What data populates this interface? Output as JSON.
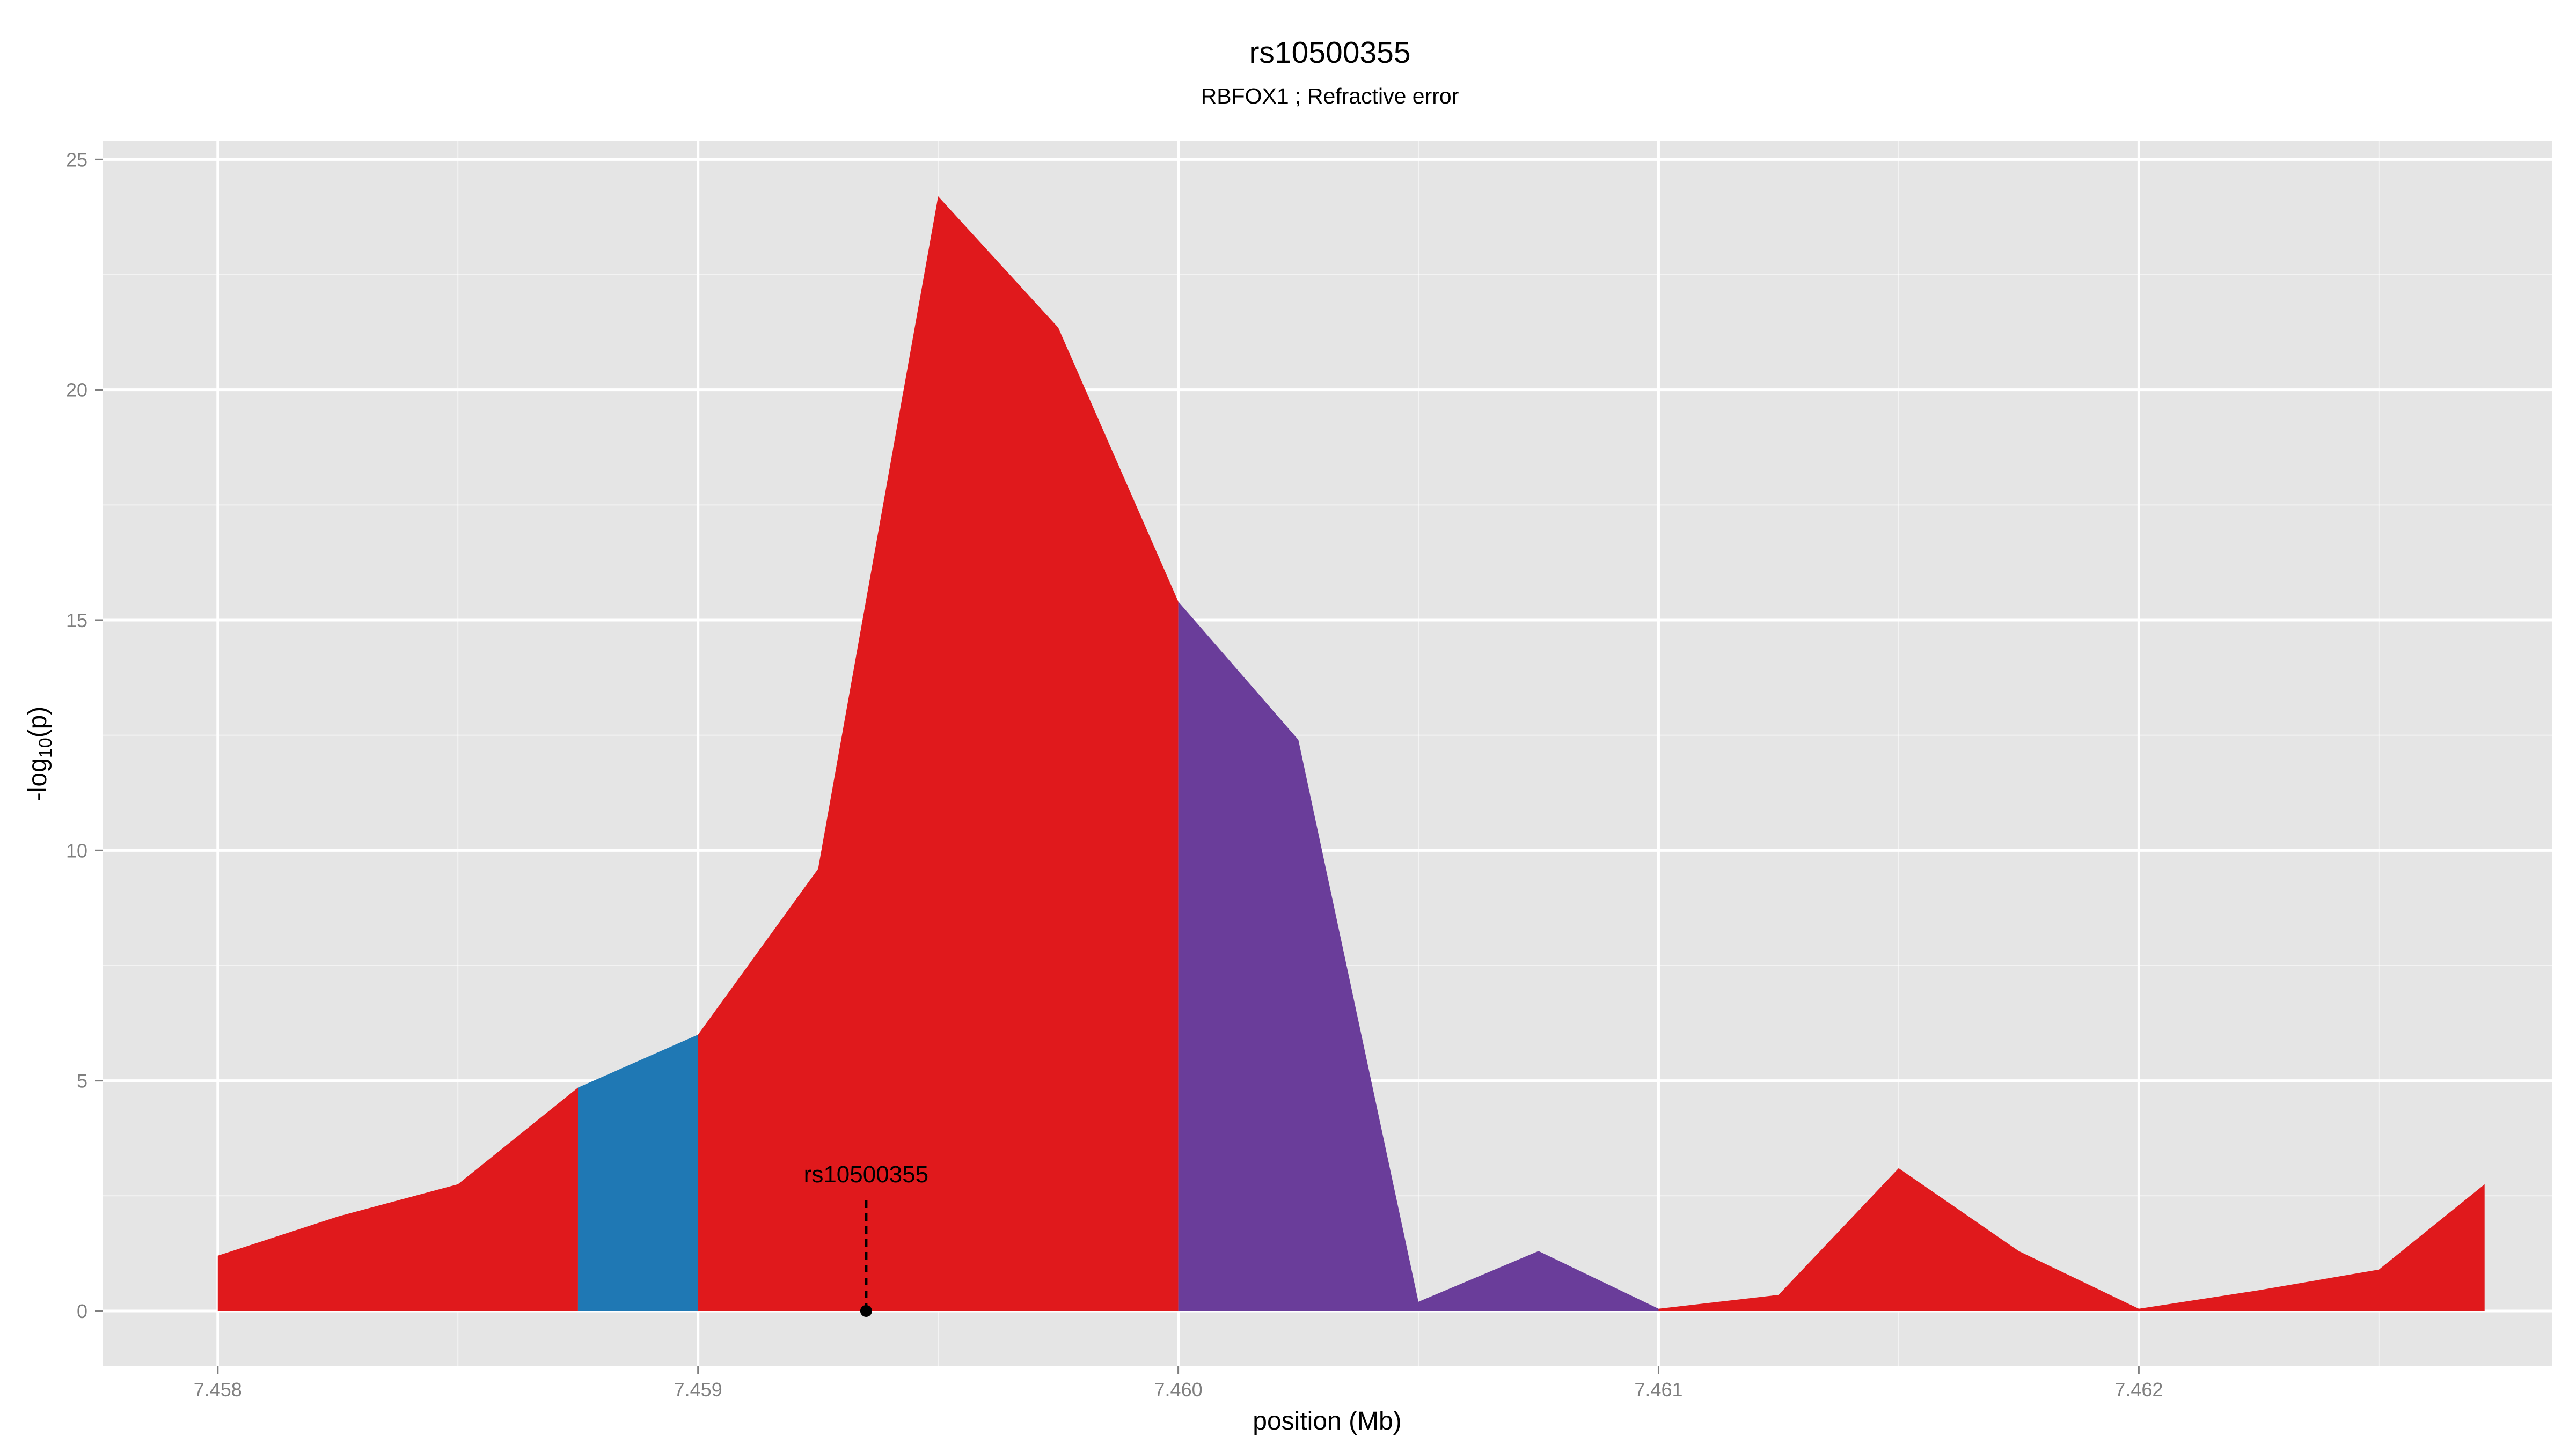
{
  "chart_data": {
    "type": "area",
    "title": "rs10500355",
    "subtitle": "RBFOX1 ; Refractive error",
    "xlabel": "position (Mb)",
    "ylabel_prefix": "-log",
    "ylabel_sub": "10",
    "ylabel_suffix": "(p)",
    "xlim": [
      7.45776,
      7.46286
    ],
    "ylim": [
      -1.2,
      25.4
    ],
    "x_ticks": [
      7.458,
      7.459,
      7.46,
      7.461,
      7.462
    ],
    "x_tick_labels": [
      "7.458",
      "7.459",
      "7.460",
      "7.461",
      "7.462"
    ],
    "y_ticks": [
      0,
      5,
      10,
      15,
      20,
      25
    ],
    "y_tick_labels": [
      "0",
      "5",
      "10",
      "15",
      "20",
      "25"
    ],
    "grid": true,
    "panel_background": "#e5e5e5",
    "grid_color": "#ffffff",
    "x": [
      7.458,
      7.45825,
      7.4585,
      7.45875,
      7.459,
      7.45925,
      7.4595,
      7.45975,
      7.46,
      7.46025,
      7.4605,
      7.46075,
      7.461,
      7.46125,
      7.4615,
      7.46175,
      7.462,
      7.46225,
      7.4625,
      7.46272
    ],
    "y": [
      1.2,
      2.05,
      2.75,
      4.85,
      6.0,
      9.6,
      24.2,
      21.35,
      15.4,
      12.4,
      0.2,
      1.3,
      0.05,
      0.35,
      3.1,
      1.3,
      0.05,
      0.45,
      0.9,
      2.75
    ],
    "segments": [
      {
        "from": 7.458,
        "to": 7.45875,
        "color": "#e0191c"
      },
      {
        "from": 7.45875,
        "to": 7.459,
        "color": "#1f78b4"
      },
      {
        "from": 7.459,
        "to": 7.46,
        "color": "#e0191c"
      },
      {
        "from": 7.46,
        "to": 7.461,
        "color": "#6a3d9a"
      },
      {
        "from": 7.461,
        "to": 7.46272,
        "color": "#e0191c"
      }
    ],
    "annotation": {
      "label": "rs10500355",
      "x": 7.45935,
      "y": 0
    }
  }
}
